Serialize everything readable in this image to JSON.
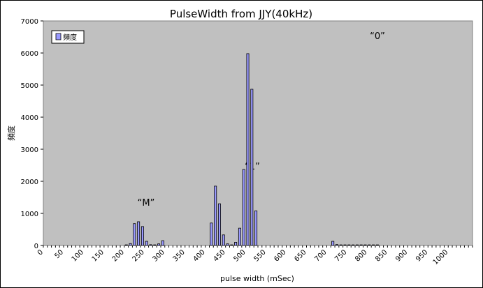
{
  "chart_data": {
    "type": "bar",
    "title": "PulseWidth from JJY(40kHz)",
    "xlabel": "pulse width (mSec)",
    "ylabel": "頻度",
    "ylim": [
      0,
      7000
    ],
    "yticks": [
      "0",
      "1000",
      "2000",
      "3000",
      "4000",
      "5000",
      "6000",
      "7000"
    ],
    "xticks": [
      "0",
      "50",
      "100",
      "150",
      "200",
      "250",
      "300",
      "350",
      "400",
      "450",
      "500",
      "550",
      "600",
      "650",
      "700",
      "750",
      "800",
      "850",
      "900",
      "950",
      "1000"
    ],
    "grid": false,
    "legend": "top-left",
    "series": [
      {
        "name": "頻度",
        "color": "#9999ff",
        "x": [
          200,
          210,
          220,
          230,
          240,
          250,
          260,
          270,
          280,
          290,
          410,
          420,
          430,
          440,
          450,
          460,
          470,
          480,
          490,
          500,
          510,
          520,
          710,
          720,
          730,
          740,
          750,
          760,
          770,
          780,
          790,
          800,
          810,
          820
        ],
        "values": [
          20,
          60,
          680,
          740,
          590,
          130,
          25,
          20,
          50,
          150,
          700,
          1850,
          1300,
          330,
          50,
          20,
          100,
          540,
          2370,
          5980,
          4870,
          1080,
          130,
          30,
          20,
          20,
          20,
          20,
          20,
          20,
          20,
          20,
          20,
          20
        ]
      }
    ],
    "annotations": [
      "“M”",
      "“1”",
      "“0”"
    ]
  }
}
